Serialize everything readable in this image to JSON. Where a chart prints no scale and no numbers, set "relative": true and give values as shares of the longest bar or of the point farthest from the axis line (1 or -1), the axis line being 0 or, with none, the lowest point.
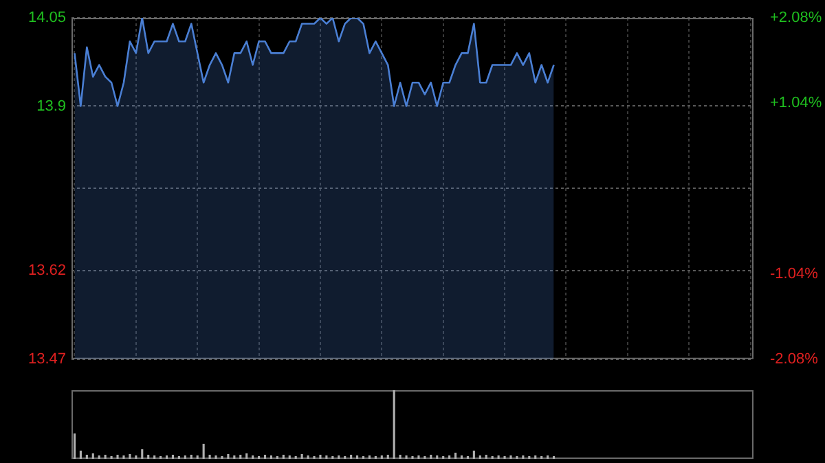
{
  "chart_data": [
    {
      "type": "area",
      "categories": [
        null,
        null,
        null,
        null,
        null,
        null,
        null,
        null,
        null,
        null,
        null,
        null,
        null,
        null,
        null,
        null,
        null,
        null,
        null,
        null,
        null,
        null,
        null,
        null,
        null,
        null,
        null,
        null,
        null,
        null,
        null,
        null,
        null,
        null,
        null,
        null,
        null,
        null,
        null,
        null,
        null,
        null,
        null,
        null,
        null,
        null,
        null,
        null,
        null,
        null,
        null,
        null,
        null,
        null,
        null,
        null,
        null,
        null,
        null,
        null,
        null,
        null,
        null,
        null,
        null,
        null,
        null,
        null,
        null,
        null,
        null,
        null,
        null,
        null,
        null,
        null,
        null,
        null,
        null,
        null,
        null,
        null,
        null,
        null,
        null,
        null,
        null,
        null,
        null,
        null,
        null,
        null,
        null,
        null,
        null,
        null,
        null,
        null,
        null,
        null,
        null,
        null,
        null,
        null,
        null,
        null,
        null,
        null,
        null,
        null,
        null
      ],
      "series": [
        {
          "color": "#4a7fd4",
          "values": [
            13.99,
            13.9,
            14.0,
            13.95,
            13.97,
            13.95,
            13.94,
            13.9,
            13.94,
            14.01,
            13.99,
            14.05,
            13.99,
            14.01,
            14.01,
            14.01,
            14.04,
            14.01,
            14.01,
            14.04,
            13.99,
            13.94,
            13.97,
            13.99,
            13.97,
            13.94,
            13.99,
            13.99,
            14.01,
            13.97,
            14.01,
            14.01,
            13.99,
            13.99,
            13.99,
            14.01,
            14.01,
            14.04,
            14.04,
            14.04,
            14.05,
            14.04,
            14.05,
            14.01,
            14.04,
            14.05,
            14.05,
            14.04,
            13.99,
            14.01,
            13.99,
            13.97,
            13.9,
            13.94,
            13.9,
            13.94,
            13.94,
            13.92,
            13.94,
            13.9,
            13.94,
            13.94,
            13.97,
            13.99,
            13.99,
            14.04,
            13.94,
            13.94,
            13.97,
            13.97,
            13.97,
            13.97,
            13.99,
            13.97,
            13.99,
            13.94,
            13.97,
            13.94,
            13.97,
            null,
            null,
            null,
            null,
            null,
            null,
            null,
            null,
            null,
            null,
            null,
            null,
            null,
            null,
            null,
            null,
            null,
            null,
            null,
            null,
            null,
            null,
            null,
            null,
            null,
            null,
            null,
            null,
            null,
            null,
            null,
            null
          ]
        }
      ],
      "ylim": [
        13.47,
        14.05
      ],
      "yticks": [
        13.47,
        13.62,
        {
          "value": 13.76,
          "label": null
        },
        13.9,
        14.05
      ],
      "y2lim": [
        -2.08,
        2.08
      ],
      "y2ticks": [
        {
          "value": -2.08,
          "label": "-2.08%"
        },
        {
          "value": -1.04,
          "label": "-1.04%"
        },
        {
          "value": 1.04,
          "label": "+1.04%"
        },
        {
          "value": 2.08,
          "label": "+2.08%"
        }
      ],
      "grid": true,
      "legend": false,
      "tick_labels": "y"
    },
    {
      "type": "bar",
      "relative": true,
      "categories": [
        null,
        null,
        null,
        null,
        null,
        null,
        null,
        null,
        null,
        null,
        null,
        null,
        null,
        null,
        null,
        null,
        null,
        null,
        null,
        null,
        null,
        null,
        null,
        null,
        null,
        null,
        null,
        null,
        null,
        null,
        null,
        null,
        null,
        null,
        null,
        null,
        null,
        null,
        null,
        null,
        null,
        null,
        null,
        null,
        null,
        null,
        null,
        null,
        null,
        null,
        null,
        null,
        null,
        null,
        null,
        null,
        null,
        null,
        null,
        null,
        null,
        null,
        null,
        null,
        null,
        null,
        null,
        null,
        null,
        null,
        null,
        null,
        null,
        null,
        null,
        null,
        null,
        null,
        null,
        null,
        null,
        null,
        null,
        null,
        null,
        null,
        null,
        null,
        null,
        null,
        null,
        null,
        null,
        null,
        null,
        null,
        null,
        null,
        null,
        null,
        null,
        null,
        null,
        null,
        null,
        null,
        null,
        null,
        null,
        null,
        null
      ],
      "series": [
        {
          "color": "#b0b0b0",
          "values": [
            0.37,
            0.12,
            0.06,
            0.08,
            0.05,
            0.06,
            0.04,
            0.06,
            0.05,
            0.07,
            0.05,
            0.14,
            0.06,
            0.05,
            0.04,
            0.05,
            0.06,
            0.04,
            0.05,
            0.06,
            0.05,
            0.22,
            0.06,
            0.05,
            0.04,
            0.07,
            0.05,
            0.06,
            0.08,
            0.05,
            0.04,
            0.06,
            0.05,
            0.04,
            0.06,
            0.05,
            0.04,
            0.07,
            0.05,
            0.04,
            0.06,
            0.05,
            0.04,
            0.05,
            0.04,
            0.06,
            0.05,
            0.04,
            0.05,
            0.04,
            0.05,
            0.06,
            1,
            0.06,
            0.05,
            0.04,
            0.05,
            0.04,
            0.06,
            0.05,
            0.04,
            0.05,
            0.09,
            0.05,
            0.04,
            0.12,
            0.05,
            0.06,
            0.04,
            0.05,
            0.04,
            0.05,
            0.04,
            0.05,
            0.04,
            0.05,
            0.04,
            0.05,
            0.04,
            null,
            null,
            null,
            null,
            null,
            null,
            null,
            null,
            null,
            null,
            null,
            null,
            null,
            null,
            null,
            null,
            null,
            null,
            null,
            null,
            null,
            null,
            null,
            null,
            null,
            null,
            null,
            null,
            null,
            null,
            null,
            null
          ]
        }
      ],
      "legend": false,
      "tick_labels": false
    }
  ]
}
